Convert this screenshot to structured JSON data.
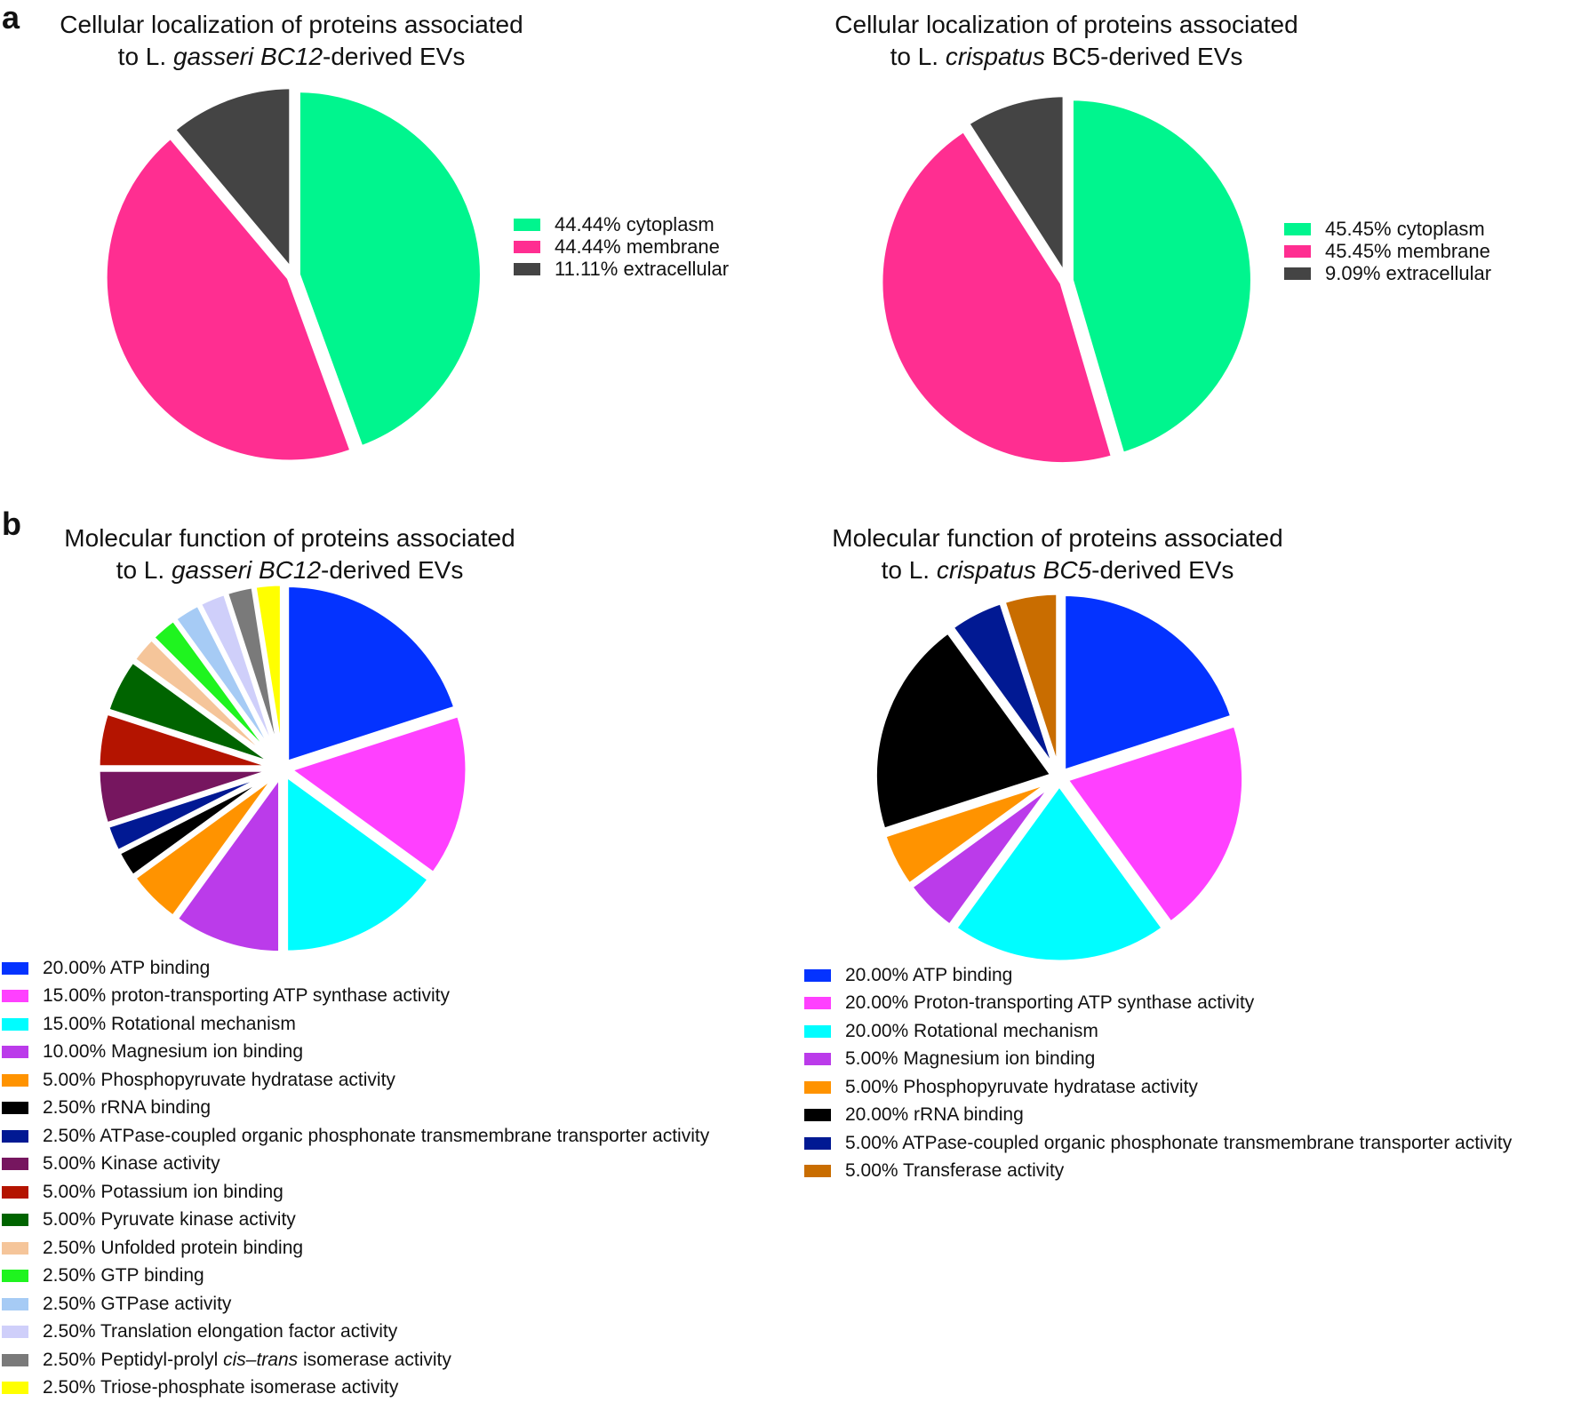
{
  "panels": {
    "a": "a",
    "b": "b"
  },
  "chart_data": [
    {
      "id": "loc-gasseri",
      "type": "pie",
      "title_parts": [
        {
          "text": "Cellular localization of proteins associated",
          "italic": false,
          "newline_after": true
        },
        {
          "text": "to L. ",
          "italic": false
        },
        {
          "text": "gasseri BC12",
          "italic": true
        },
        {
          "text": "-derived EVs",
          "italic": false
        }
      ],
      "slices": [
        {
          "label": "cytoplasm",
          "value": 44.44,
          "legend": "44.44% cytoplasm",
          "color": "#00F58E"
        },
        {
          "label": "membrane",
          "value": 44.44,
          "legend": "44.44% membrane",
          "color": "#FF2E91"
        },
        {
          "label": "extracellular",
          "value": 11.11,
          "legend": "11.11% extracellular",
          "color": "#444444"
        }
      ]
    },
    {
      "id": "loc-crispatus",
      "type": "pie",
      "title_parts": [
        {
          "text": "Cellular localization of proteins associated",
          "italic": false,
          "newline_after": true
        },
        {
          "text": "to L. ",
          "italic": false
        },
        {
          "text": "crispatus",
          "italic": true
        },
        {
          "text": " BC5-derived EVs",
          "italic": false
        }
      ],
      "slices": [
        {
          "label": "cytoplasm",
          "value": 45.45,
          "legend": "45.45% cytoplasm",
          "color": "#00F58E"
        },
        {
          "label": "membrane",
          "value": 45.45,
          "legend": "45.45% membrane",
          "color": "#FF2E91"
        },
        {
          "label": "extracellular",
          "value": 9.09,
          "legend": "9.09% extracellular",
          "color": "#444444"
        }
      ]
    },
    {
      "id": "func-gasseri",
      "type": "pie",
      "title_parts": [
        {
          "text": "Molecular function of proteins associated",
          "italic": false,
          "newline_after": true
        },
        {
          "text": "to L. ",
          "italic": false
        },
        {
          "text": "gasseri BC12",
          "italic": true
        },
        {
          "text": "-derived EVs",
          "italic": false
        }
      ],
      "slices": [
        {
          "label": "ATP binding",
          "value": 20.0,
          "legend": "20.00% ATP binding",
          "color": "#0433FF"
        },
        {
          "label": "proton-transporting ATP synthase activity",
          "value": 15.0,
          "legend": "15.00% proton-transporting ATP synthase activity",
          "color": "#FF40FF"
        },
        {
          "label": "Rotational mechanism",
          "value": 15.0,
          "legend": "15.00% Rotational mechanism",
          "color": "#00FDFF"
        },
        {
          "label": "Magnesium ion binding",
          "value": 10.0,
          "legend": "10.00% Magnesium ion binding",
          "color": "#BB3BEA"
        },
        {
          "label": "Phosphopyruvate hydratase activity",
          "value": 5.0,
          "legend": "5.00% Phosphopyruvate hydratase activity",
          "color": "#FF9300"
        },
        {
          "label": "rRNA binding",
          "value": 2.5,
          "legend": "2.50% rRNA binding",
          "color": "#000000"
        },
        {
          "label": "ATPase-coupled organic phosphonate transmembrane transporter activity",
          "value": 2.5,
          "legend": "2.50% ATPase-coupled organic phosphonate transmembrane transporter activity",
          "color": "#011993"
        },
        {
          "label": "Kinase activity",
          "value": 5.0,
          "legend": "5.00% Kinase activity",
          "color": "#76165F"
        },
        {
          "label": "Potassium ion binding",
          "value": 5.0,
          "legend": "5.00% Potassium ion binding",
          "color": "#B41400"
        },
        {
          "label": "Pyruvate kinase activity",
          "value": 5.0,
          "legend": "5.00% Pyruvate kinase activity",
          "color": "#006400"
        },
        {
          "label": "Unfolded protein binding",
          "value": 2.5,
          "legend": "2.50% Unfolded protein binding",
          "color": "#F5C59A"
        },
        {
          "label": "GTP binding",
          "value": 2.5,
          "legend": "2.50% GTP binding",
          "color": "#1FF41F"
        },
        {
          "label": "GTPase activity",
          "value": 2.5,
          "legend": "2.50% GTPase activity",
          "color": "#A6CBF5"
        },
        {
          "label": "Translation elongation factor activity",
          "value": 2.5,
          "legend": "2.50% Translation elongation factor activity",
          "color": "#CFCFFA"
        },
        {
          "label": "Peptidyl-prolyl cis–trans isomerase activity",
          "value": 2.5,
          "legend_parts": [
            {
              "text": "2.50% Peptidyl-prolyl ",
              "italic": false
            },
            {
              "text": "cis–trans",
              "italic": true
            },
            {
              "text": " isomerase activity",
              "italic": false
            }
          ],
          "color": "#7A7A7A"
        },
        {
          "label": "Triose-phosphate isomerase activity",
          "value": 2.5,
          "legend": "2.50% Triose-phosphate isomerase activity",
          "color": "#FFFF00"
        }
      ]
    },
    {
      "id": "func-crispatus",
      "type": "pie",
      "title_parts": [
        {
          "text": "Molecular function of proteins associated",
          "italic": false,
          "newline_after": true
        },
        {
          "text": "to L. ",
          "italic": false
        },
        {
          "text": "crispatus BC5",
          "italic": true
        },
        {
          "text": "-derived EVs",
          "italic": false
        }
      ],
      "slices": [
        {
          "label": "ATP binding",
          "value": 20.0,
          "legend": "20.00% ATP binding",
          "color": "#0433FF"
        },
        {
          "label": "Proton-transporting ATP synthase activity",
          "value": 20.0,
          "legend": "20.00% Proton-transporting ATP synthase activity",
          "color": "#FF40FF"
        },
        {
          "label": "Rotational mechanism",
          "value": 20.0,
          "legend": "20.00% Rotational mechanism",
          "color": "#00FDFF"
        },
        {
          "label": "Magnesium ion binding",
          "value": 5.0,
          "legend": "5.00% Magnesium ion binding",
          "color": "#BB3BEA"
        },
        {
          "label": "Phosphopyruvate hydratase activity",
          "value": 5.0,
          "legend": "5.00% Phosphopyruvate hydratase activity",
          "color": "#FF9300"
        },
        {
          "label": "rRNA binding",
          "value": 20.0,
          "legend": "20.00% rRNA binding",
          "color": "#000000"
        },
        {
          "label": "ATPase-coupled organic phosphonate transmembrane transporter activity",
          "value": 5.0,
          "legend": "5.00% ATPase-coupled organic phosphonate transmembrane transporter activity",
          "color": "#011993"
        },
        {
          "label": "Transferase activity",
          "value": 5.0,
          "legend": "5.00% Transferase activity",
          "color": "#C96D00"
        }
      ]
    }
  ]
}
